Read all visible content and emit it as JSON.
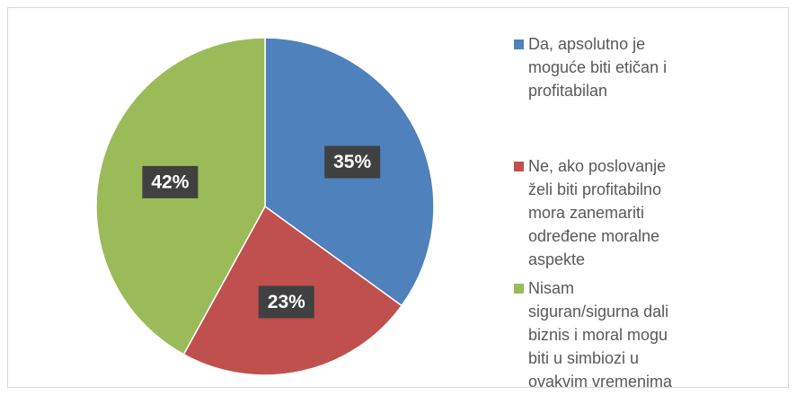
{
  "chart_data": {
    "type": "pie",
    "categories": [
      "Da, apsolutno je moguće biti etičan i profitabilan",
      "Ne, ako poslovanje želi biti profitabilno mora zanemariti određene moralne aspekte",
      "Nisam siguran/sigurna dali biznis i moral mogu biti u simbiozi u ovakvim vremenima"
    ],
    "values": [
      35,
      23,
      42
    ],
    "value_labels": [
      "35%",
      "23%",
      "42%"
    ],
    "colors": [
      "#4f81bd",
      "#c0504d",
      "#9bbb59"
    ],
    "legend": "right"
  }
}
